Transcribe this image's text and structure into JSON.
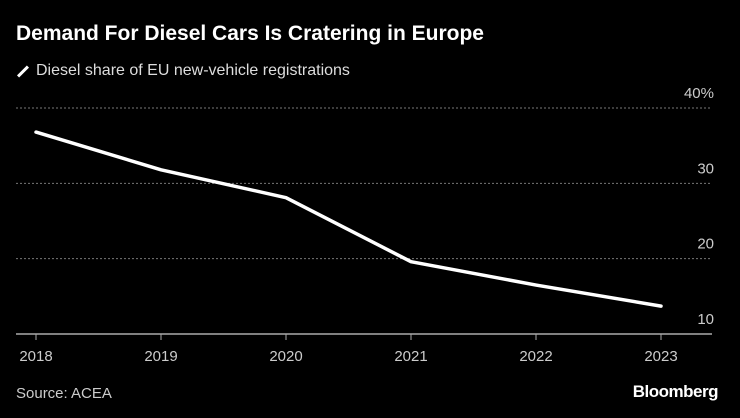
{
  "title": "Demand For Diesel Cars Is Cratering in Europe",
  "source": "Source: ACEA",
  "brand": "Bloomberg",
  "chart_data": {
    "type": "line",
    "title": "Demand For Diesel Cars Is Cratering in Europe",
    "categories": [
      "2018",
      "2019",
      "2020",
      "2021",
      "2022",
      "2023"
    ],
    "series": [
      {
        "name": "Diesel share of EU new-vehicle registrations",
        "values": [
          36.8,
          31.8,
          28.1,
          19.6,
          16.5,
          13.7
        ],
        "color": "#ffffff"
      }
    ],
    "ylim": [
      10,
      40
    ],
    "yticks": [
      10,
      20,
      30,
      40
    ],
    "ytick_labels": [
      "10",
      "20",
      "30",
      "40%"
    ],
    "grid": true,
    "legend": "top-left",
    "background": "#000000"
  }
}
